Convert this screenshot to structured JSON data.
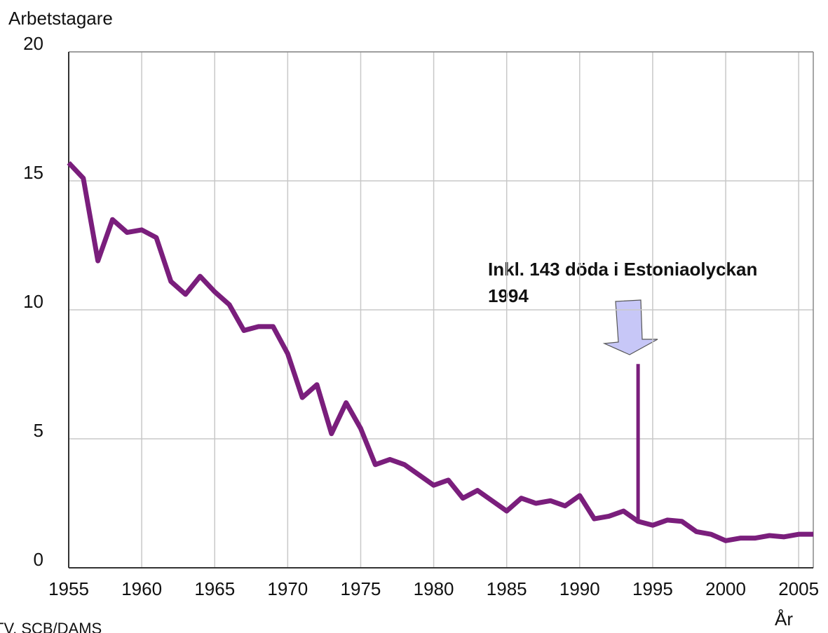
{
  "chart_data": {
    "type": "line",
    "y_label": "Arbetstagare",
    "x_label": "År",
    "source": "TV, SCB/DAMS",
    "x": [
      1955,
      1956,
      1957,
      1958,
      1959,
      1960,
      1961,
      1962,
      1963,
      1964,
      1965,
      1966,
      1967,
      1968,
      1969,
      1970,
      1971,
      1972,
      1973,
      1974,
      1975,
      1976,
      1977,
      1978,
      1979,
      1980,
      1981,
      1982,
      1983,
      1984,
      1985,
      1986,
      1987,
      1988,
      1989,
      1990,
      1991,
      1992,
      1993,
      1994,
      1995,
      1996,
      1997,
      1998,
      1999,
      2000,
      2001,
      2002,
      2003,
      2004,
      2005,
      2006
    ],
    "series": [
      {
        "color": "#7a1e7c",
        "values": [
          15.7,
          15.1,
          11.9,
          13.5,
          13.0,
          13.1,
          12.8,
          11.1,
          10.6,
          11.3,
          10.7,
          10.2,
          9.2,
          9.35,
          9.35,
          8.3,
          6.6,
          7.1,
          5.2,
          6.4,
          5.4,
          4.0,
          4.2,
          4.0,
          3.6,
          3.2,
          3.4,
          2.7,
          3.0,
          2.6,
          2.2,
          2.7,
          2.5,
          2.6,
          2.4,
          2.8,
          1.9,
          2.0,
          2.2,
          1.8,
          1.65,
          1.85,
          1.8,
          1.4,
          1.3,
          1.05,
          1.15,
          1.15,
          1.25,
          1.2,
          1.3,
          1.3
        ]
      }
    ],
    "annotation": {
      "lines": [
        "Inkl. 143 döda i Estoniaolyckan",
        "1994"
      ],
      "x": 1994,
      "value": 7.9
    },
    "xlim": [
      1955,
      2006
    ],
    "xticks": [
      1955,
      1960,
      1965,
      1970,
      1975,
      1980,
      1985,
      1990,
      1995,
      2000,
      2005
    ],
    "ylim": [
      0,
      20
    ],
    "yticks": [
      0,
      5,
      10,
      15,
      20
    ],
    "grid": true
  }
}
